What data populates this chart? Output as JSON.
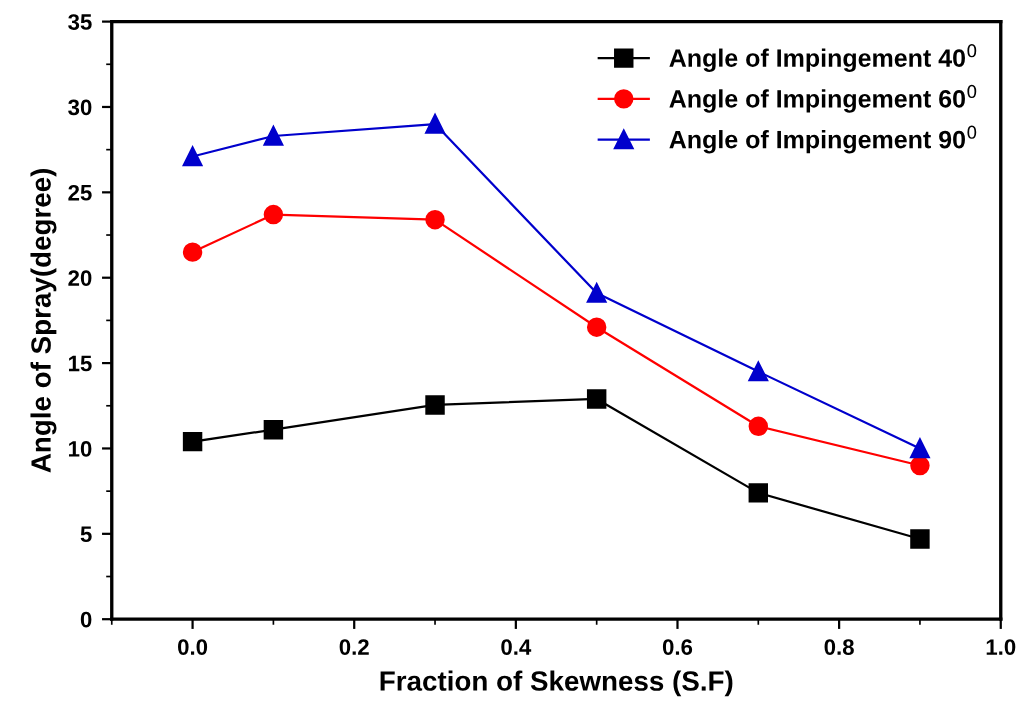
{
  "chart_data": {
    "type": "line",
    "xlabel": "Fraction of Skewness (S.F)",
    "ylabel": "Angle of Spray(degree)",
    "x": [
      0.0,
      0.1,
      0.3,
      0.5,
      0.7,
      0.9
    ],
    "series": [
      {
        "name": "Angle of Impingement 40$^{0}$",
        "color": "#000000",
        "marker": "square",
        "values": [
          10.4,
          11.1,
          12.55,
          12.9,
          7.4,
          4.7
        ]
      },
      {
        "name": "Angle of Impingement 60$^{0}$",
        "color": "#ff0000",
        "marker": "circle",
        "values": [
          21.5,
          23.7,
          23.4,
          17.1,
          11.3,
          9.0
        ]
      },
      {
        "name": "Angle of Impingement 90$^{0}$",
        "color": "#0000cc",
        "marker": "triangle",
        "values": [
          27.1,
          28.3,
          29.0,
          19.1,
          14.5,
          10.0
        ]
      }
    ],
    "xlim": [
      -0.1,
      1.0
    ],
    "xticks": [
      {
        "value": 0.0,
        "label": "0.0"
      },
      {
        "value": 0.2,
        "label": "0.2"
      },
      {
        "value": 0.4,
        "label": "0.4"
      },
      {
        "value": 0.6,
        "label": "0.6"
      },
      {
        "value": 0.8,
        "label": "0.8"
      },
      {
        "value": 1.0,
        "label": "1.0"
      }
    ],
    "ylim": [
      0,
      35
    ],
    "yticks": [
      0,
      5,
      10,
      15,
      20,
      25,
      30,
      35
    ],
    "grid": false,
    "legend": "top right",
    "line_style": "solid"
  }
}
